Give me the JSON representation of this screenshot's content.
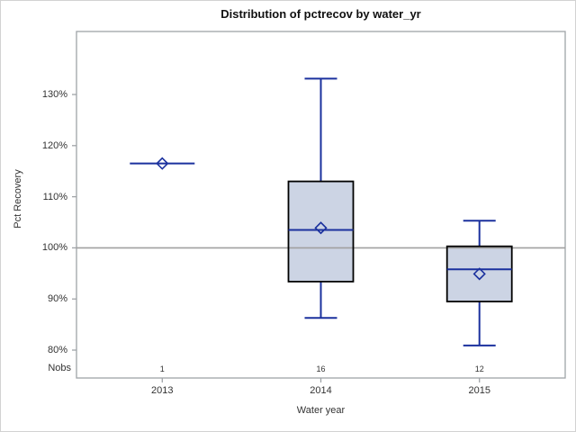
{
  "title": "Distribution of pctrecov by water_yr",
  "x_axis": {
    "label": "Water year",
    "categories": [
      "2013",
      "2014",
      "2015"
    ]
  },
  "y_axis": {
    "label": "Pct Recovery",
    "ticks": [
      "80%",
      "90%",
      "100%",
      "110%",
      "120%",
      "130%"
    ]
  },
  "nobs_row": {
    "label": "Nobs",
    "values": [
      "1",
      "16",
      "12"
    ]
  },
  "colors": {
    "box_fill": "#ccd4e4",
    "box_stroke": "#000000",
    "line": "#1b319e",
    "frame": "#9fa3a7",
    "reference_line": "#a0a0a0",
    "text": "#333333",
    "background": "#ffffff",
    "outer_border": "#d2d2d2"
  },
  "chart_data": {
    "type": "box",
    "title": "Distribution of pctrecov by water_yr",
    "xlabel": "Water year",
    "ylabel": "Pct Recovery",
    "categories": [
      "2013",
      "2014",
      "2015"
    ],
    "y_ticks": [
      80,
      90,
      100,
      110,
      120,
      130
    ],
    "y_tick_suffix": "%",
    "ylim": [
      74.5,
      142.3
    ],
    "grid": false,
    "legend": "none",
    "reference_line_y": 100,
    "series": [
      {
        "category": "2013",
        "nobs": 1,
        "min": 116.5,
        "q1": 116.5,
        "median": 116.5,
        "q3": 116.5,
        "max": 116.5,
        "mean": 116.5
      },
      {
        "category": "2014",
        "nobs": 16,
        "min": 86.3,
        "q1": 93.4,
        "median": 103.5,
        "q3": 113.0,
        "max": 133.1,
        "mean": 103.9
      },
      {
        "category": "2015",
        "nobs": 12,
        "min": 80.9,
        "q1": 89.5,
        "median": 95.8,
        "q3": 100.3,
        "max": 105.3,
        "mean": 94.9
      }
    ]
  }
}
